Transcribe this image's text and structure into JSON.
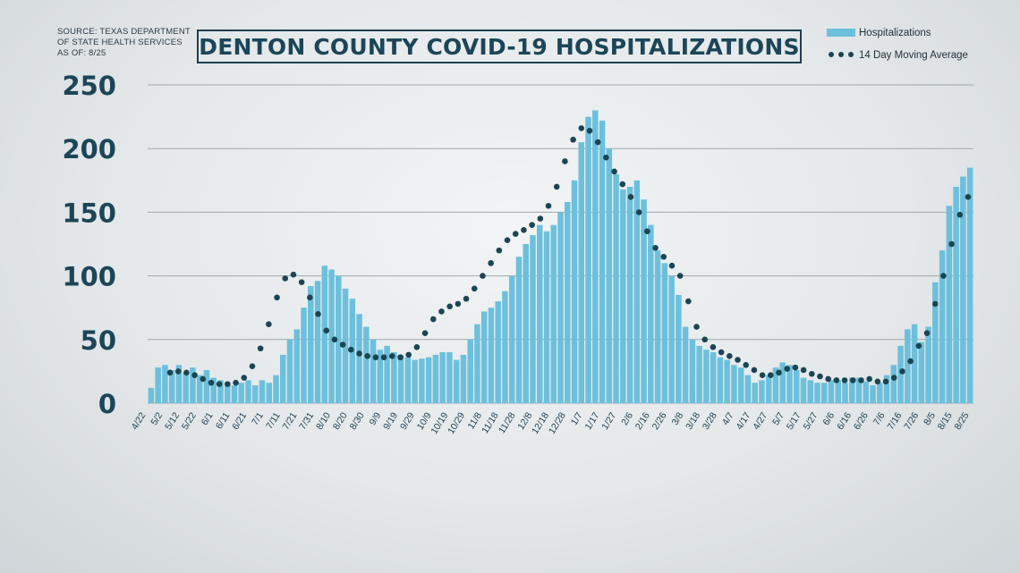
{
  "source_lines": [
    "SOURCE: TEXAS DEPARTMENT",
    "OF STATE HEALTH SERVICES",
    "AS OF: 8/25"
  ],
  "colors": {
    "bar": "#6cc0dc",
    "dot": "#1b4553",
    "title": "#1c4658",
    "grid": "#9fa8ad"
  },
  "chart_data": {
    "type": "bar",
    "title": "DENTON COUNTY COVID-19 HOSPITALIZATIONS",
    "legend": [
      {
        "name": "Hospitalizations",
        "kind": "bar"
      },
      {
        "name": "14 Day Moving Average",
        "kind": "dotted-line"
      }
    ],
    "legend_position": "top-right",
    "ylim": [
      0,
      250
    ],
    "yticks": [
      0,
      50,
      100,
      150,
      200,
      250
    ],
    "grid": true,
    "x_tick_labels": [
      "4/22",
      "5/2",
      "5/12",
      "5/22",
      "6/1",
      "6/11",
      "6/21",
      "7/1",
      "7/11",
      "7/21",
      "7/31",
      "8/10",
      "8/20",
      "8/30",
      "9/9",
      "9/19",
      "9/29",
      "10/9",
      "10/19",
      "10/29",
      "11/8",
      "11/18",
      "11/28",
      "12/8",
      "12/18",
      "12/28",
      "1/7",
      "1/17",
      "1/27",
      "2/6",
      "2/16",
      "2/26",
      "3/8",
      "3/18",
      "3/28",
      "4/7",
      "4/17",
      "4/27",
      "5/7",
      "5/17",
      "5/27",
      "6/6",
      "6/16",
      "6/26",
      "7/6",
      "7/16",
      "7/26",
      "8/5",
      "8/15",
      "8/25"
    ],
    "series": [
      {
        "name": "Hospitalizations",
        "kind": "bar",
        "values": [
          12,
          28,
          30,
          26,
          30,
          24,
          28,
          22,
          26,
          20,
          18,
          16,
          14,
          16,
          18,
          14,
          18,
          16,
          22,
          38,
          50,
          58,
          75,
          92,
          96,
          108,
          105,
          100,
          90,
          82,
          70,
          60,
          50,
          42,
          45,
          40,
          38,
          36,
          34,
          35,
          36,
          38,
          40,
          40,
          34,
          38,
          50,
          62,
          72,
          75,
          80,
          88,
          100,
          115,
          125,
          132,
          140,
          135,
          140,
          150,
          158,
          175,
          205,
          225,
          230,
          222,
          200,
          180,
          168,
          170,
          175,
          160,
          140,
          120,
          110,
          100,
          85,
          60,
          50,
          45,
          42,
          40,
          36,
          34,
          30,
          28,
          22,
          16,
          18,
          22,
          28,
          32,
          30,
          26,
          20,
          18,
          16,
          16,
          18,
          18,
          16,
          20,
          20,
          17,
          14,
          16,
          22,
          30,
          45,
          58,
          62,
          48,
          60,
          95,
          120,
          155,
          170,
          178,
          185
        ]
      },
      {
        "name": "14 Day Moving Average",
        "kind": "dotted-line",
        "values": [
          24,
          25,
          24,
          22,
          19,
          16,
          15,
          15,
          16,
          20,
          29,
          43,
          62,
          83,
          98,
          101,
          95,
          83,
          70,
          57,
          50,
          46,
          42,
          39,
          37,
          36,
          36,
          37,
          36,
          38,
          44,
          55,
          66,
          72,
          76,
          78,
          82,
          90,
          100,
          110,
          120,
          128,
          133,
          136,
          140,
          145,
          155,
          170,
          190,
          207,
          216,
          214,
          205,
          193,
          182,
          172,
          162,
          150,
          135,
          122,
          115,
          108,
          100,
          80,
          60,
          50,
          44,
          40,
          37,
          34,
          30,
          26,
          22,
          22,
          24,
          27,
          28,
          26,
          23,
          21,
          19,
          18,
          18,
          18,
          18,
          19,
          17,
          17,
          20,
          25,
          33,
          45,
          55,
          78,
          100,
          125,
          148,
          162
        ]
      }
    ]
  }
}
